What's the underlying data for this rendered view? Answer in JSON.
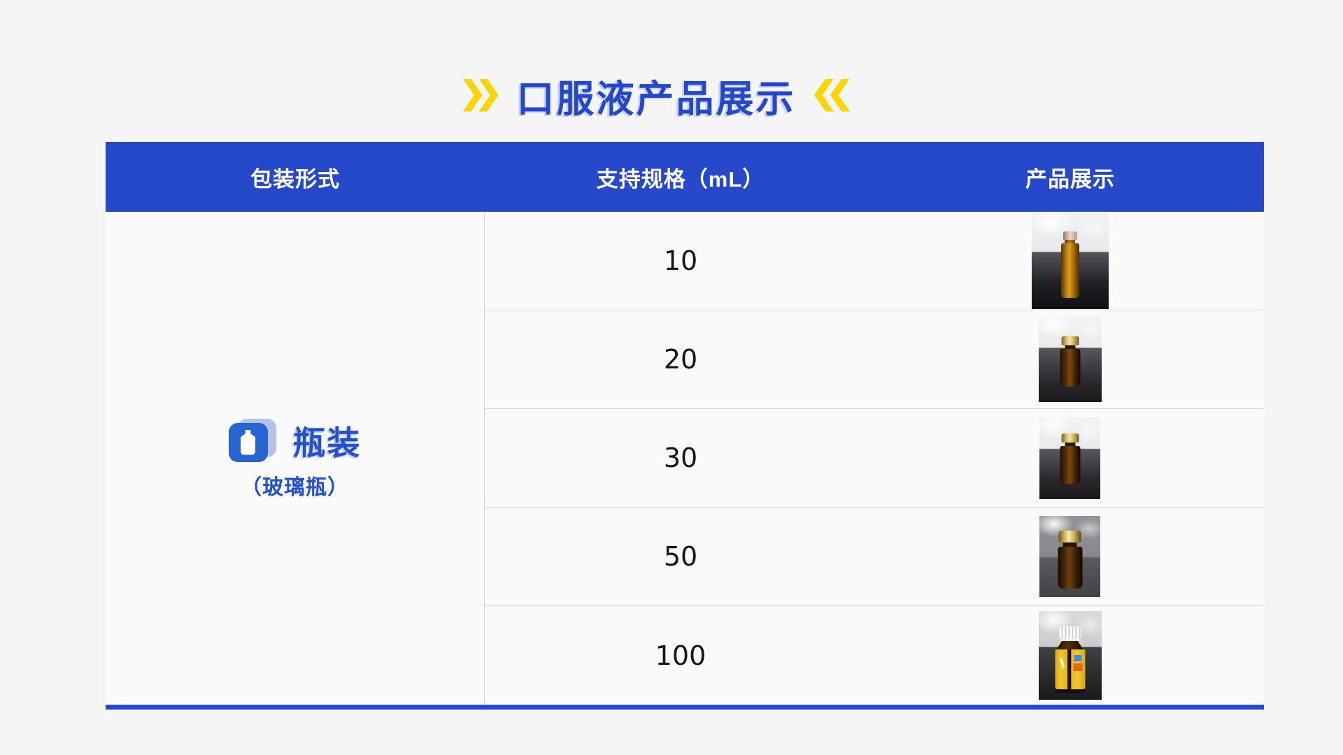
{
  "title": {
    "text": "口服液产品展示",
    "left_icon": "double-chevron-right",
    "right_icon": "double-chevron-left"
  },
  "colors": {
    "primary_blue": "#2549CA",
    "accent_yellow": "#F9D501",
    "text_blue": "#2450CE"
  },
  "table": {
    "headers": [
      "包装形式",
      "支持规格（mL）",
      "产品展示"
    ],
    "packaging": {
      "name": "瓶装",
      "subtitle": "（玻璃瓶）",
      "icon": "bottle-icon"
    },
    "rows": [
      {
        "size": "10",
        "photo": "amber-vial-crimp-cap"
      },
      {
        "size": "20",
        "photo": "small-amber-bottle-gold-cap"
      },
      {
        "size": "30",
        "photo": "small-amber-bottle-gold-cap"
      },
      {
        "size": "50",
        "photo": "medium-amber-bottle-gold-cap"
      },
      {
        "size": "100",
        "photo": "amber-bottle-white-cap-yellow-label"
      }
    ]
  }
}
